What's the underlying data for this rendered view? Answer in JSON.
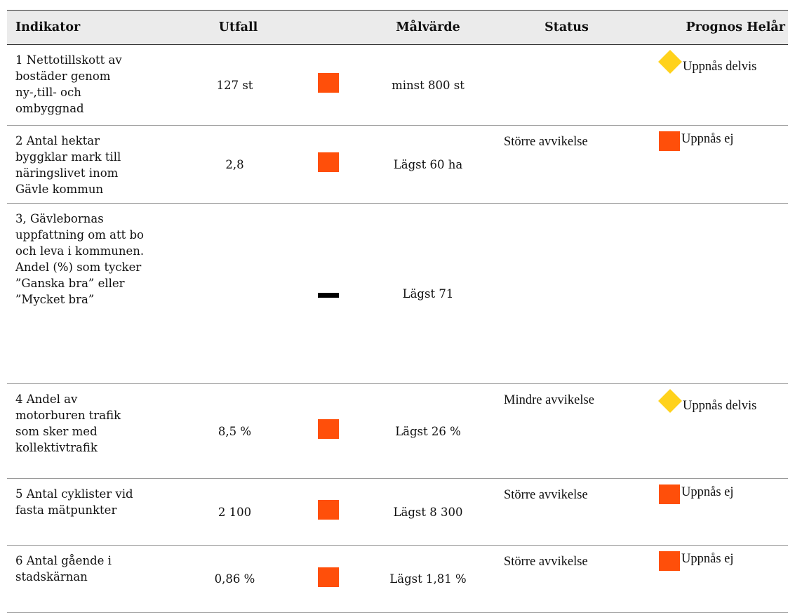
{
  "header": {
    "indikator": "Indikator",
    "utfall": "Utfall",
    "malvarde": "Målvärde",
    "status": "Status",
    "prognos": "Prognos Helår"
  },
  "rows": [
    {
      "indikator": "1 Nettotillskott av bostäder genom ny-,till- och ombyggnad",
      "utfall": "127 st",
      "icon": "square",
      "malvarde": "minst 800 st",
      "status": null,
      "prognos_icon": "diamond",
      "prognos": "Uppnås delvis"
    },
    {
      "indikator": "2 Antal hektar byggklar mark till näringslivet inom Gävle kommun",
      "utfall": "2,8",
      "icon": "square",
      "malvarde": "Lägst 60 ha",
      "status": "Större avvikelse",
      "prognos_icon": "square",
      "prognos": "Uppnås ej"
    },
    {
      "indikator": "3, Gävlebornas uppfattning om att bo och leva i kommunen. Andel (%) som tycker ”Ganska bra” eller ”Mycket bra”",
      "utfall": null,
      "icon": "dash",
      "malvarde": "Lägst 71",
      "status": null,
      "prognos_icon": null,
      "prognos": null
    },
    {
      "indikator": "4 Andel av motorburen trafik som sker med kollektivtrafik",
      "utfall": "8,5 %",
      "icon": "square",
      "malvarde": "Lägst 26 %",
      "status": "Mindre avvikelse",
      "prognos_icon": "diamond",
      "prognos": "Uppnås delvis"
    },
    {
      "indikator": "5 Antal cyklister vid fasta mätpunkter",
      "utfall": "2 100",
      "icon": "square",
      "malvarde": "Lägst 8 300",
      "status": "Större avvikelse",
      "prognos_icon": "square",
      "prognos": "Uppnås ej"
    },
    {
      "indikator": "6 Antal gående i stadskärnan",
      "utfall": "0,86 %",
      "icon": "square",
      "malvarde": "Lägst 1,81 %",
      "status": "Större avvikelse",
      "prognos_icon": "square",
      "prognos": "Uppnås ej"
    }
  ]
}
